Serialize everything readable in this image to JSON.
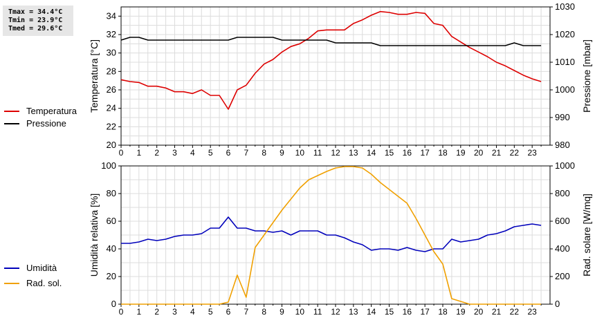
{
  "stats": {
    "tmax": "Tmax = 34.4°C",
    "tmin": "Tmin = 23.9°C",
    "tmed": "Tmed = 29.6°C"
  },
  "legend_top": [
    {
      "label": "Temperatura",
      "color": "#dd0000"
    },
    {
      "label": "Pressione",
      "color": "#000000"
    }
  ],
  "legend_bottom": [
    {
      "label": "Umidità",
      "color": "#0000bb"
    },
    {
      "label": "Rad. sol.",
      "color": "#f0a000"
    }
  ],
  "chart_data": [
    {
      "type": "line",
      "xlim": [
        0,
        24
      ],
      "x_ticks": [
        0,
        1,
        2,
        3,
        4,
        5,
        6,
        7,
        8,
        9,
        10,
        11,
        12,
        13,
        14,
        15,
        16,
        17,
        18,
        19,
        20,
        21,
        22,
        23
      ],
      "ylabel_left": "Temperatura [°C]",
      "ylabel_right": "Pressione [mbar]",
      "ylim_left": [
        20,
        35
      ],
      "yticks_left": [
        20,
        22,
        24,
        26,
        28,
        30,
        32,
        34
      ],
      "ylim_right": [
        980,
        1030
      ],
      "yticks_right": [
        980,
        990,
        1000,
        1010,
        1020,
        1030
      ],
      "grid": true,
      "series": [
        {
          "name": "Temperatura",
          "axis": "left",
          "color": "#dd0000",
          "x": [
            0,
            0.5,
            1,
            1.5,
            2,
            2.5,
            3,
            3.5,
            4,
            4.5,
            5,
            5.5,
            6,
            6.5,
            7,
            7.5,
            8,
            8.5,
            9,
            9.5,
            10,
            10.5,
            11,
            11.5,
            12,
            12.5,
            13,
            13.5,
            14,
            14.5,
            15,
            15.5,
            16,
            16.5,
            17,
            17.5,
            18,
            18.5,
            19,
            19.5,
            20,
            20.5,
            21,
            21.5,
            22,
            22.5,
            23,
            23.5
          ],
          "y": [
            27.1,
            26.9,
            26.8,
            26.4,
            26.4,
            26.2,
            25.8,
            25.8,
            25.6,
            26.0,
            25.4,
            25.4,
            23.9,
            26.0,
            26.5,
            27.8,
            28.8,
            29.3,
            30.1,
            30.7,
            31.0,
            31.6,
            32.4,
            32.5,
            32.5,
            32.5,
            33.2,
            33.6,
            34.1,
            34.5,
            34.4,
            34.2,
            34.2,
            34.4,
            34.3,
            33.2,
            33.0,
            31.8,
            31.2,
            30.6,
            30.1,
            29.6,
            29.0,
            28.6,
            28.1,
            27.6,
            27.2,
            26.9
          ]
        },
        {
          "name": "Pressione",
          "axis": "right",
          "color": "#000000",
          "x": [
            0,
            0.5,
            1,
            1.5,
            2,
            2.5,
            3,
            3.5,
            4,
            4.5,
            5,
            5.5,
            6,
            6.5,
            7,
            7.5,
            8,
            8.5,
            9,
            9.5,
            10,
            10.5,
            11,
            11.5,
            12,
            12.5,
            13,
            13.5,
            14,
            14.5,
            15,
            15.5,
            16,
            16.5,
            17,
            17.5,
            18,
            18.5,
            19,
            19.5,
            20,
            20.5,
            21,
            21.5,
            22,
            22.5,
            23,
            23.5
          ],
          "y": [
            1018,
            1019,
            1019,
            1018,
            1018,
            1018,
            1018,
            1018,
            1018,
            1018,
            1018,
            1018,
            1018,
            1019,
            1019,
            1019,
            1019,
            1019,
            1018,
            1018,
            1018,
            1018,
            1018,
            1018,
            1017,
            1017,
            1017,
            1017,
            1017,
            1016,
            1016,
            1016,
            1016,
            1016,
            1016,
            1016,
            1016,
            1016,
            1016,
            1016,
            1016,
            1016,
            1016,
            1016,
            1017,
            1016,
            1016,
            1016
          ]
        }
      ]
    },
    {
      "type": "line",
      "xlim": [
        0,
        24
      ],
      "x_ticks": [
        0,
        1,
        2,
        3,
        4,
        5,
        6,
        7,
        8,
        9,
        10,
        11,
        12,
        13,
        14,
        15,
        16,
        17,
        18,
        19,
        20,
        21,
        22,
        23
      ],
      "ylabel_left": "Umidità relativa [%]",
      "ylabel_right": "Rad. solare [W/mq]",
      "ylim_left": [
        0,
        100
      ],
      "yticks_left": [
        0,
        20,
        40,
        60,
        80,
        100
      ],
      "ylim_right": [
        0,
        1000
      ],
      "yticks_right": [
        0,
        200,
        400,
        600,
        800,
        1000
      ],
      "grid": true,
      "series": [
        {
          "name": "Umidità",
          "axis": "left",
          "color": "#0000bb",
          "x": [
            0,
            0.5,
            1,
            1.5,
            2,
            2.5,
            3,
            3.5,
            4,
            4.5,
            5,
            5.5,
            6,
            6.5,
            7,
            7.5,
            8,
            8.5,
            9,
            9.5,
            10,
            10.5,
            11,
            11.5,
            12,
            12.5,
            13,
            13.5,
            14,
            14.5,
            15,
            15.5,
            16,
            16.5,
            17,
            17.5,
            18,
            18.5,
            19,
            19.5,
            20,
            20.5,
            21,
            21.5,
            22,
            22.5,
            23,
            23.5
          ],
          "y": [
            44,
            44,
            45,
            47,
            46,
            47,
            49,
            50,
            50,
            51,
            55,
            55,
            63,
            55,
            55,
            53,
            53,
            52,
            53,
            50,
            53,
            53,
            53,
            50,
            50,
            48,
            45,
            43,
            39,
            40,
            40,
            39,
            41,
            39,
            38,
            40,
            40,
            47,
            45,
            46,
            47,
            50,
            51,
            53,
            56,
            57,
            58,
            57
          ]
        },
        {
          "name": "Rad. sol.",
          "axis": "right",
          "color": "#f0a000",
          "x": [
            0,
            0.5,
            1,
            1.5,
            2,
            2.5,
            3,
            3.5,
            4,
            4.5,
            5,
            5.5,
            6,
            6.5,
            7,
            7.5,
            8,
            8.5,
            9,
            9.5,
            10,
            10.5,
            11,
            11.5,
            12,
            12.5,
            13,
            13.5,
            14,
            14.5,
            15,
            15.5,
            16,
            16.5,
            17,
            17.5,
            18,
            18.5,
            19,
            19.5,
            20,
            20.5,
            21,
            21.5,
            22,
            22.5,
            23,
            23.5
          ],
          "y": [
            0,
            0,
            0,
            0,
            0,
            0,
            0,
            0,
            0,
            0,
            0,
            0,
            15,
            210,
            50,
            410,
            500,
            590,
            680,
            760,
            840,
            900,
            930,
            960,
            985,
            995,
            995,
            985,
            940,
            880,
            830,
            780,
            730,
            620,
            500,
            380,
            290,
            40,
            20,
            0,
            0,
            0,
            0,
            0,
            0,
            0,
            0,
            0
          ]
        }
      ]
    }
  ]
}
